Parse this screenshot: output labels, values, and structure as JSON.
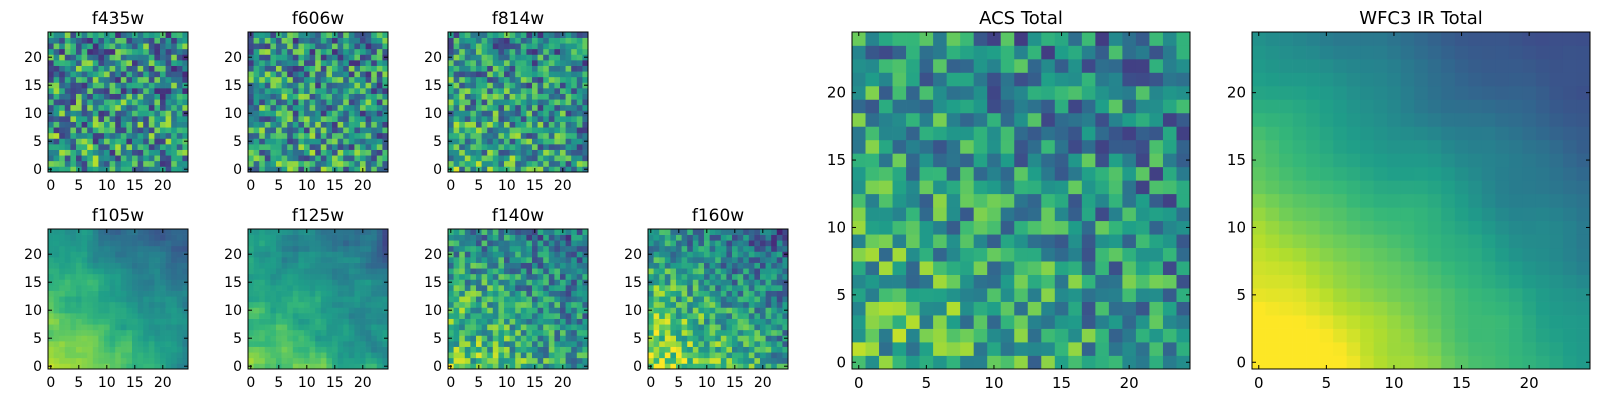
{
  "figure": {
    "background": "#ffffff",
    "colormap": "viridis"
  },
  "chart_data": [
    {
      "type": "heatmap",
      "title": "f435w",
      "grid_size": 25,
      "xlim": [
        -0.5,
        24.5
      ],
      "ylim": [
        -0.5,
        24.5
      ],
      "xticks": [
        0,
        5,
        10,
        15,
        20
      ],
      "yticks": [
        0,
        5,
        10,
        15,
        20
      ],
      "grid": false,
      "legend": "none",
      "seed": 11,
      "gradient": 0.05,
      "noise": 0.34,
      "smooth": 0
    },
    {
      "type": "heatmap",
      "title": "f606w",
      "grid_size": 25,
      "xlim": [
        -0.5,
        24.5
      ],
      "ylim": [
        -0.5,
        24.5
      ],
      "xticks": [
        0,
        5,
        10,
        15,
        20
      ],
      "yticks": [
        0,
        5,
        10,
        15,
        20
      ],
      "grid": false,
      "legend": "none",
      "seed": 23,
      "gradient": 0.08,
      "noise": 0.32,
      "smooth": 0
    },
    {
      "type": "heatmap",
      "title": "f814w",
      "grid_size": 25,
      "xlim": [
        -0.5,
        24.5
      ],
      "ylim": [
        -0.5,
        24.5
      ],
      "xticks": [
        0,
        5,
        10,
        15,
        20
      ],
      "yticks": [
        0,
        5,
        10,
        15,
        20
      ],
      "grid": false,
      "legend": "none",
      "seed": 37,
      "gradient": 0.14,
      "noise": 0.3,
      "smooth": 0
    },
    {
      "type": "heatmap",
      "title": "f105w",
      "grid_size": 25,
      "xlim": [
        -0.5,
        24.5
      ],
      "ylim": [
        -0.5,
        24.5
      ],
      "xticks": [
        0,
        5,
        10,
        15,
        20
      ],
      "yticks": [
        0,
        5,
        10,
        15,
        20
      ],
      "grid": false,
      "legend": "none",
      "seed": 41,
      "gradient": 0.45,
      "noise": 0.16,
      "smooth": 1
    },
    {
      "type": "heatmap",
      "title": "f125w",
      "grid_size": 25,
      "xlim": [
        -0.5,
        24.5
      ],
      "ylim": [
        -0.5,
        24.5
      ],
      "xticks": [
        0,
        5,
        10,
        15,
        20
      ],
      "yticks": [
        0,
        5,
        10,
        15,
        20
      ],
      "grid": false,
      "legend": "none",
      "seed": 53,
      "gradient": 0.35,
      "noise": 0.2,
      "smooth": 1
    },
    {
      "type": "heatmap",
      "title": "f140w",
      "grid_size": 25,
      "xlim": [
        -0.5,
        24.5
      ],
      "ylim": [
        -0.5,
        24.5
      ],
      "xticks": [
        0,
        5,
        10,
        15,
        20
      ],
      "yticks": [
        0,
        5,
        10,
        15,
        20
      ],
      "grid": false,
      "legend": "none",
      "seed": 67,
      "gradient": 0.3,
      "noise": 0.24,
      "smooth": 0
    },
    {
      "type": "heatmap",
      "title": "f160w",
      "grid_size": 25,
      "xlim": [
        -0.5,
        24.5
      ],
      "ylim": [
        -0.5,
        24.5
      ],
      "xticks": [
        0,
        5,
        10,
        15,
        20
      ],
      "yticks": [
        0,
        5,
        10,
        15,
        20
      ],
      "grid": false,
      "legend": "none",
      "seed": 79,
      "gradient": 0.45,
      "noise": 0.22,
      "smooth": 0
    },
    {
      "type": "heatmap",
      "title": "ACS Total",
      "grid_size": 25,
      "xlim": [
        -0.5,
        24.5
      ],
      "ylim": [
        -0.5,
        24.5
      ],
      "xticks": [
        0,
        5,
        10,
        15,
        20
      ],
      "yticks": [
        0,
        5,
        10,
        15,
        20
      ],
      "grid": false,
      "legend": "none",
      "seed": 97,
      "gradient": 0.18,
      "noise": 0.26,
      "smooth": 0
    },
    {
      "type": "heatmap",
      "title": "WFC3 IR Total",
      "grid_size": 25,
      "xlim": [
        -0.5,
        24.5
      ],
      "ylim": [
        -0.5,
        24.5
      ],
      "xticks": [
        0,
        5,
        10,
        15,
        20
      ],
      "yticks": [
        0,
        5,
        10,
        15,
        20
      ],
      "grid": false,
      "legend": "none",
      "seed": 101,
      "gradient": 0.7,
      "noise": 0.1,
      "smooth": 2
    }
  ]
}
